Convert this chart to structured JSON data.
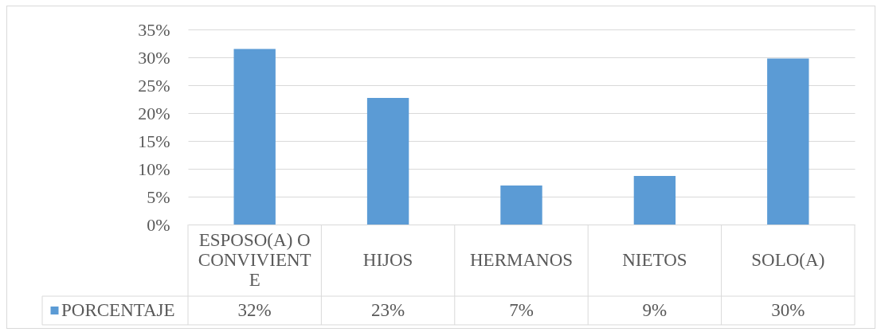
{
  "chart_data": {
    "type": "bar",
    "categories": [
      "ESPOSO(A) O CONVIVIENTE",
      "HIJOS",
      "HERMANOS",
      "NIETOS",
      "SOLO(A)"
    ],
    "series": [
      {
        "name": "PORCENTAJE",
        "color": "#5b9bd5",
        "values": [
          31.5,
          22.7,
          7.0,
          8.7,
          29.8
        ],
        "value_labels": [
          "32%",
          "23%",
          "7%",
          "9%",
          "30%"
        ]
      }
    ],
    "ylim": [
      0,
      35
    ],
    "yticks": [
      {
        "value": 0,
        "label": "0%"
      },
      {
        "value": 5,
        "label": "5%"
      },
      {
        "value": 10,
        "label": "10%"
      },
      {
        "value": 15,
        "label": "15%"
      },
      {
        "value": 20,
        "label": "20%"
      },
      {
        "value": 25,
        "label": "25%"
      },
      {
        "value": 30,
        "label": "30%"
      },
      {
        "value": 35,
        "label": "35%"
      }
    ],
    "grid": "y",
    "legend": "bottom left"
  }
}
